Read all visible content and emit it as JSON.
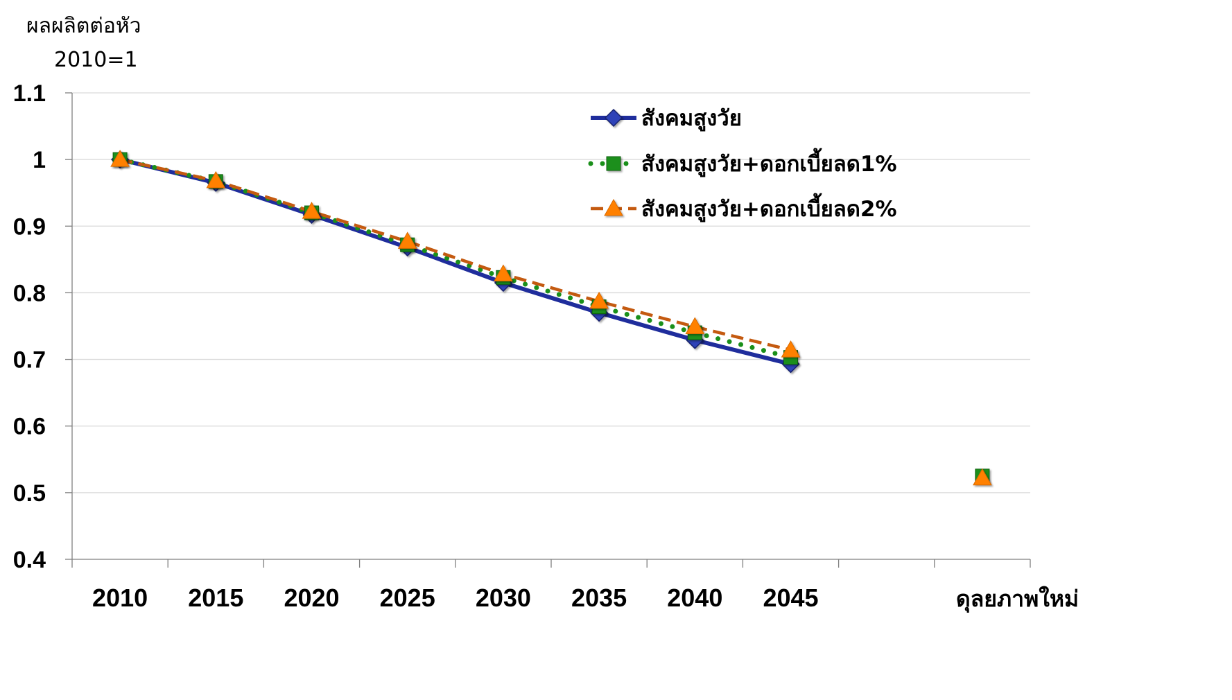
{
  "chart_data": {
    "type": "line",
    "ylabel": "ผลผลิตต่อหัว",
    "ylabel_sub": "2010=1",
    "ylim": [
      0.4,
      1.1
    ],
    "yticks": [
      "1.1",
      "1",
      "0.9",
      "0.8",
      "0.7",
      "0.6",
      "0.5",
      "0.4"
    ],
    "categories": [
      "2010",
      "2015",
      "2020",
      "2025",
      "2030",
      "2035",
      "2040",
      "2045",
      "ดุลยภาพใหม่"
    ],
    "grid": true,
    "legend_position": "top-right",
    "series": [
      {
        "name": "สังคมสูงวัย",
        "style": "solid",
        "marker": "diamond",
        "color": "#1f2d9c",
        "values": [
          1.0,
          0.965,
          0.917,
          0.868,
          0.815,
          0.77,
          0.729,
          0.693,
          null
        ]
      },
      {
        "name": "สังคมสูงวัย+ดอกเบี้ยลด1%",
        "style": "dotted",
        "marker": "square",
        "color": "#1a8f1a",
        "values": [
          1.0,
          0.967,
          0.92,
          0.872,
          0.823,
          0.779,
          0.74,
          0.703,
          0.525
        ]
      },
      {
        "name": "สังคมสูงวัย+ดอกเบี้ยลด2%",
        "style": "dashed",
        "marker": "triangle",
        "color": "#ff8000",
        "values": [
          1.0,
          0.968,
          0.922,
          0.877,
          0.828,
          0.787,
          0.749,
          0.714,
          0.522
        ]
      }
    ]
  }
}
